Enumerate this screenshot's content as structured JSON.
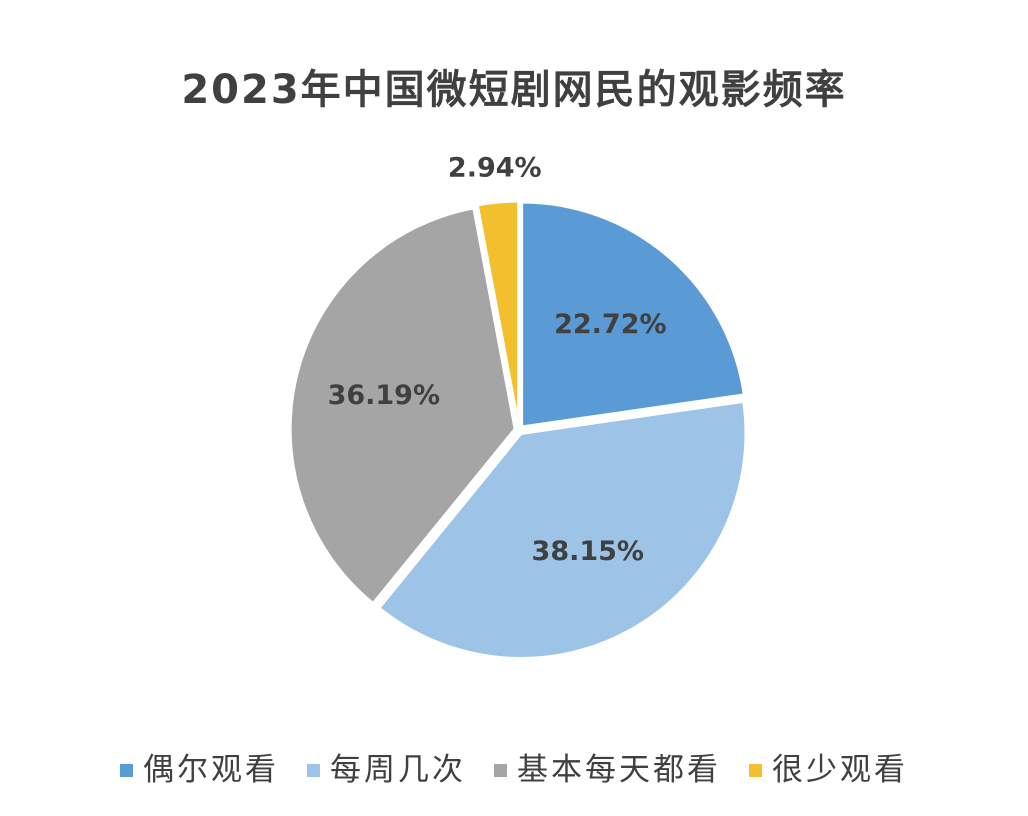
{
  "chart_data": {
    "type": "pie",
    "title": "2023年中国微短剧网民的观影频率",
    "categories": [
      "偶尔观看",
      "每周几次",
      "基本每天都看",
      "很少观看"
    ],
    "values": [
      22.72,
      38.15,
      36.19,
      2.94
    ],
    "data_labels": [
      "22.72%",
      "38.15%",
      "36.19%",
      "2.94%"
    ],
    "colors": [
      "#5b9bd5",
      "#9dc3e6",
      "#a5a5a5",
      "#f2bf2e"
    ],
    "legend_placement": "bottom",
    "start_angle": "12 o'clock, clockwise"
  }
}
